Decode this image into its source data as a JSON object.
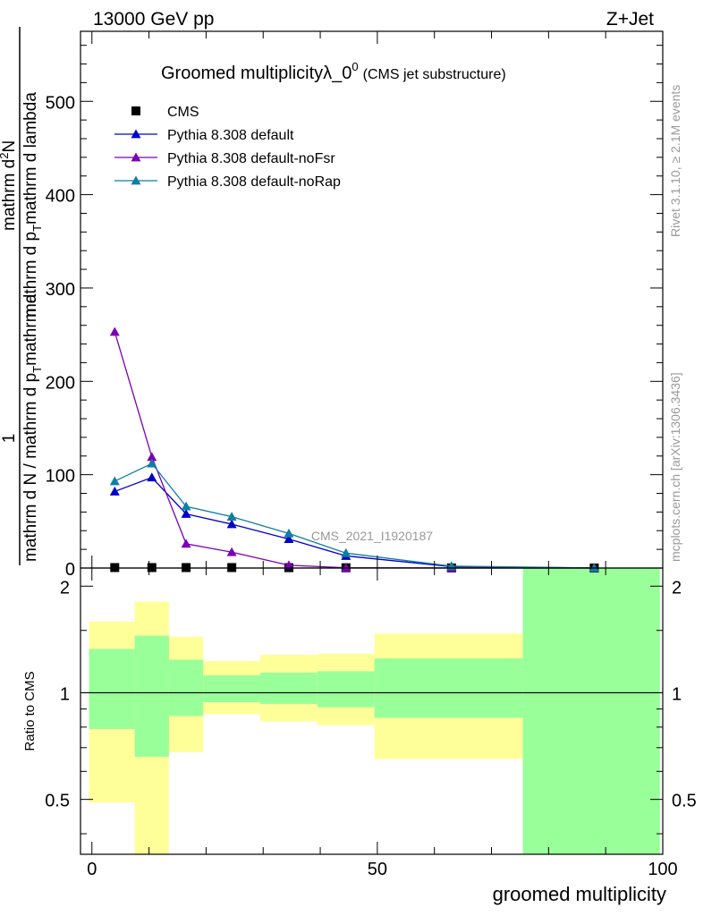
{
  "header": {
    "left": "13000 GeV pp",
    "right": "Z+Jet"
  },
  "side_labels": {
    "rivet": "Rivet 3.1.10, ≥ 2.1M events",
    "mcplots": "mcplots.cern.ch [arXiv:1306.3436]"
  },
  "watermark": "CMS_2021_I1920187",
  "chart_data": [
    {
      "type": "line",
      "title_main": "Groomed multiplicityλ_0",
      "title_sup": "0",
      "title_suffix": "(CMS jet substructure)",
      "ylabel_numerator": "1",
      "ylabel_denominator": "mathrm d N / mathrm d p",
      "ylabel_denominator_sub": "T",
      "ylabel_denominator_tail": "mathrm d",
      "ylabel_rhs_numerator": "mathrm d",
      "ylabel_rhs_sup": "2",
      "ylabel_rhs_N": "N",
      "ylabel_rhs_denominator": "mathrm d p",
      "ylabel_rhs_denominator_sub": "T",
      "ylabel_rhs_denominator_tail": "mathrm d lambda",
      "xlim": [
        -2,
        100
      ],
      "ylim": [
        0,
        575
      ],
      "yticks": [
        0,
        100,
        200,
        300,
        400,
        500
      ],
      "x": [
        4,
        10.5,
        16.5,
        24.5,
        34.5,
        44.5,
        63,
        88
      ],
      "series": [
        {
          "name": "CMS",
          "color": "#000000",
          "marker": "square",
          "values": [
            0.5,
            0.5,
            0.5,
            0.5,
            0.4,
            0.3,
            0.1,
            0.05
          ]
        },
        {
          "name": "Pythia 8.308 default",
          "color": "#0000c8",
          "marker": "triangle",
          "values": [
            82,
            97,
            58,
            47,
            31,
            13,
            1.5,
            0.05
          ]
        },
        {
          "name": "Pythia 8.308 default-noFsr",
          "color": "#7b00b4",
          "marker": "triangle",
          "values": [
            253,
            119,
            26,
            17,
            3,
            0.3,
            0.05,
            0.01
          ]
        },
        {
          "name": "Pythia 8.308 default-noRap",
          "color": "#0f7ea3",
          "marker": "triangle",
          "values": [
            93,
            112,
            66,
            55,
            37,
            16,
            2,
            0.1
          ]
        }
      ]
    },
    {
      "type": "area",
      "ylabel": "Ratio to CMS",
      "xlabel": "groomed multiplicity",
      "xlim": [
        -2,
        100
      ],
      "ylim": [
        0.35,
        2.25
      ],
      "log_y": true,
      "yticks": [
        0.5,
        1,
        2
      ],
      "xticks": [
        0,
        50,
        100
      ],
      "reference_line": 1,
      "bins": [
        {
          "x": [
            -0.5,
            7.5
          ],
          "yellow": [
            0.49,
            1.59
          ],
          "green": [
            0.79,
            1.33
          ]
        },
        {
          "x": [
            7.5,
            13.5
          ],
          "yellow": [
            0.35,
            1.81
          ],
          "green": [
            0.66,
            1.45
          ]
        },
        {
          "x": [
            13.5,
            19.5
          ],
          "yellow": [
            0.68,
            1.44
          ],
          "green": [
            0.86,
            1.24
          ]
        },
        {
          "x": [
            19.5,
            29.5
          ],
          "yellow": [
            0.87,
            1.23
          ],
          "green": [
            0.94,
            1.12
          ]
        },
        {
          "x": [
            29.5,
            39.5
          ],
          "yellow": [
            0.83,
            1.28
          ],
          "green": [
            0.93,
            1.14
          ]
        },
        {
          "x": [
            39.5,
            49.5
          ],
          "yellow": [
            0.81,
            1.29
          ],
          "green": [
            0.91,
            1.15
          ]
        },
        {
          "x": [
            49.5,
            75.5
          ],
          "yellow": [
            0.65,
            1.47
          ],
          "green": [
            0.85,
            1.25
          ]
        },
        {
          "x": [
            75.5,
            99.5
          ],
          "yellow": null,
          "green": [
            0.35,
            2.25
          ]
        }
      ]
    }
  ]
}
